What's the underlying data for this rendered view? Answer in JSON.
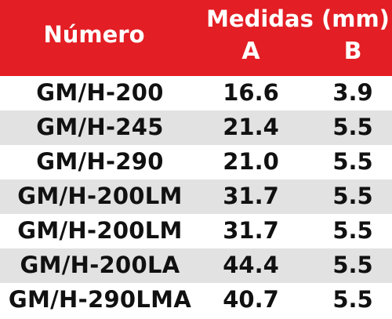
{
  "header": {
    "numero": "Número",
    "medidas": "Medidas (mm)",
    "col_a": "A",
    "col_b": "B"
  },
  "rows": [
    {
      "numero": "GM/H-200",
      "a": "16.6",
      "b": "3.9"
    },
    {
      "numero": "GM/H-245",
      "a": "21.4",
      "b": "5.5"
    },
    {
      "numero": "GM/H-290",
      "a": "21.0",
      "b": "5.5"
    },
    {
      "numero": "GM/H-200LM",
      "a": "31.7",
      "b": "5.5"
    },
    {
      "numero": "GM/H-200LM",
      "a": "31.7",
      "b": "5.5"
    },
    {
      "numero": "GM/H-200LA",
      "a": "44.4",
      "b": "5.5"
    },
    {
      "numero": "GM/H-290LMA",
      "a": "40.7",
      "b": "5.5"
    }
  ],
  "colors": {
    "header_bg": "#e31e24",
    "alt_row_bg": "#e2e2e2"
  }
}
